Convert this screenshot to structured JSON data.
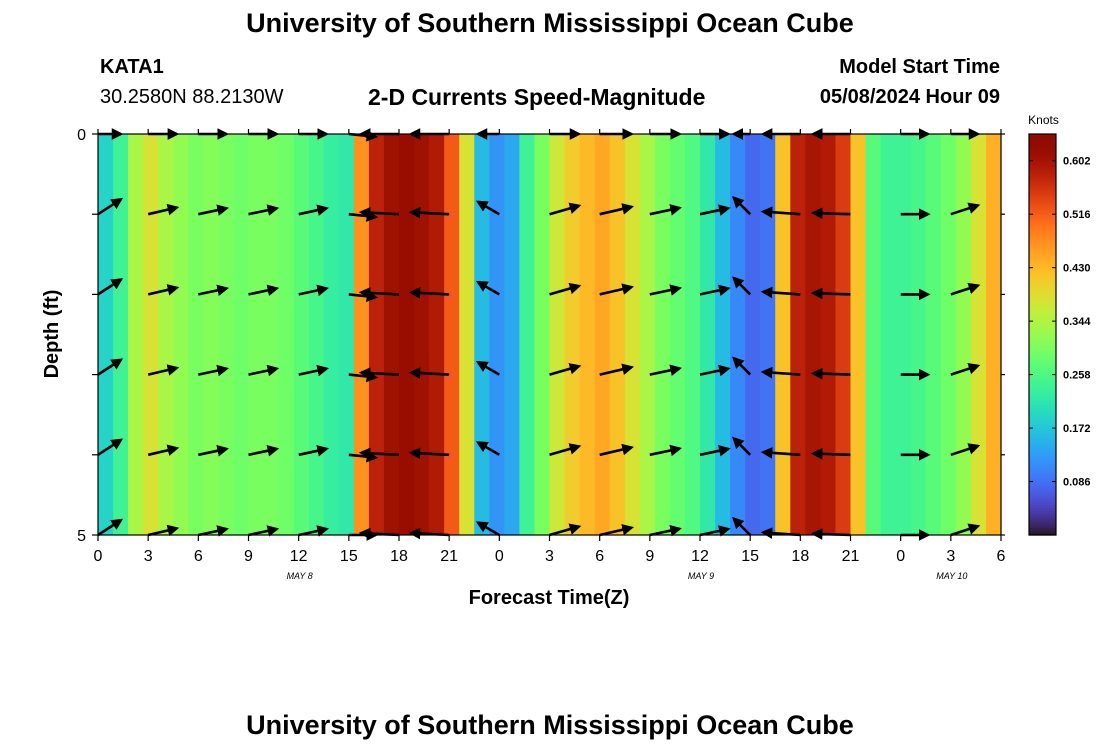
{
  "header": {
    "title": "University of Southern Mississippi Ocean Cube",
    "station": "KATA1",
    "coords": "30.2580N  88.2130W",
    "subtitle": "2-D Currents Speed-Magnitude",
    "model_label": "Model Start Time",
    "model_time": "05/08/2024 Hour 09"
  },
  "footer": {
    "title": "University of Southern Mississippi Ocean Cube"
  },
  "chart_data": {
    "type": "heatmap",
    "title": "2-D Currents Speed-Magnitude",
    "xlabel": "Forecast Time(Z)",
    "ylabel": "Depth (ft)",
    "x_ticks": [
      "0",
      "3",
      "6",
      "9",
      "12",
      "15",
      "18",
      "21",
      "0",
      "3",
      "6",
      "9",
      "12",
      "15",
      "18",
      "21",
      "0",
      "3",
      "6"
    ],
    "x_range_hours": [
      0,
      54
    ],
    "date_labels": [
      {
        "text": "MAY 8",
        "hour": 12
      },
      {
        "text": "MAY 9",
        "hour": 36
      },
      {
        "text": "MAY 10",
        "hour": 51
      }
    ],
    "y_ticks": [
      "0",
      "5"
    ],
    "y_range": [
      0,
      5
    ],
    "colorbar": {
      "label": "Knots",
      "ticks": [
        "0.602",
        "0.516",
        "0.430",
        "0.344",
        "0.258",
        "0.172",
        "0.086"
      ],
      "range": [
        0.0,
        0.645
      ]
    },
    "speed_by_hour": [
      0.19,
      0.24,
      0.34,
      0.38,
      0.34,
      0.32,
      0.3,
      0.31,
      0.3,
      0.29,
      0.3,
      0.3,
      0.29,
      0.27,
      0.25,
      0.23,
      0.22,
      0.47,
      0.58,
      0.61,
      0.62,
      0.61,
      0.59,
      0.52,
      0.38,
      0.16,
      0.12,
      0.14,
      0.24,
      0.3,
      0.37,
      0.41,
      0.43,
      0.45,
      0.42,
      0.38,
      0.34,
      0.3,
      0.28,
      0.26,
      0.22,
      0.16,
      0.11,
      0.08,
      0.09,
      0.42,
      0.58,
      0.6,
      0.59,
      0.55,
      0.42,
      0.27,
      0.24,
      0.24,
      0.25,
      0.27,
      0.29,
      0.32,
      0.38,
      0.44
    ],
    "vectors": {
      "hours": [
        0,
        3,
        6,
        9,
        12,
        15,
        18,
        21,
        24,
        27,
        30,
        33,
        36,
        39,
        42,
        45,
        48,
        51
      ],
      "depths": [
        0,
        1,
        2,
        3,
        4,
        5
      ],
      "speed_knots": [
        0.25,
        0.32,
        0.3,
        0.3,
        0.29,
        0.24,
        0.6,
        0.61,
        0.16,
        0.36,
        0.43,
        0.35,
        0.3,
        0.11,
        0.58,
        0.58,
        0.25,
        0.29
      ],
      "direction_deg": [
        57,
        77,
        78,
        78,
        78,
        96,
        273,
        273,
        300,
        74,
        77,
        78,
        78,
        315,
        274,
        272,
        90,
        72
      ]
    }
  }
}
